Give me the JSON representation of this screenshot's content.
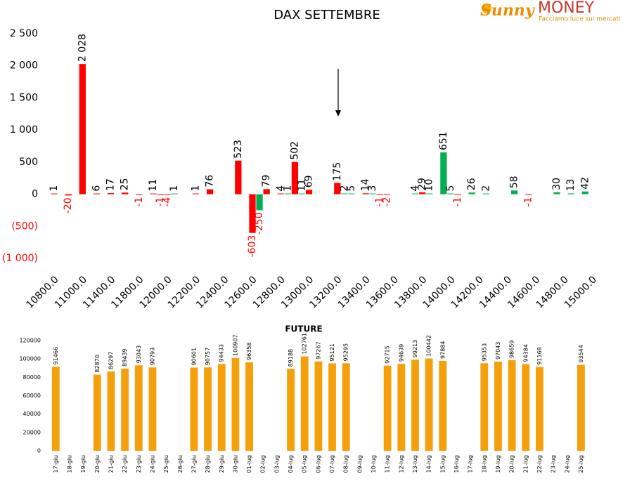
{
  "logo": {
    "brand": "Sunny",
    "name": "MONEY",
    "tagline": "Facciamo luce sui mercati"
  },
  "chart_data": [
    {
      "type": "bar",
      "title": "DAX SETTEMBRE",
      "categories": [
        "10800.0",
        null,
        null,
        null,
        "11000.0",
        null,
        null,
        null,
        "11400.0",
        null,
        null,
        null,
        "11800.0",
        null,
        null,
        null,
        "12000.0",
        null,
        null,
        null,
        "12200.0",
        null,
        null,
        null,
        "12400.0",
        null,
        null,
        null,
        "12600.0",
        null,
        null,
        null,
        "12800.0",
        null,
        null,
        null,
        "13000.0",
        null,
        null,
        null,
        "13200.0",
        null,
        null,
        null,
        "13400.0",
        null,
        null,
        null,
        "13600.0",
        null,
        null,
        null,
        "13800.0",
        null,
        null,
        null,
        "14000.0",
        null,
        null,
        null,
        "14200.0",
        null,
        null,
        null,
        "14400.0",
        null,
        null,
        null,
        "14600.0",
        null,
        null,
        null,
        "14800.0",
        null,
        null,
        null,
        "15000.0"
      ],
      "values": [
        1,
        null,
        -20,
        null,
        2028,
        null,
        6,
        null,
        17,
        null,
        25,
        null,
        -1,
        null,
        11,
        -1,
        -4,
        1,
        null,
        null,
        1,
        null,
        76,
        null,
        null,
        null,
        523,
        null,
        -603,
        -250,
        79,
        null,
        4,
        1,
        502,
        11,
        69,
        null,
        null,
        null,
        175,
        2,
        5,
        null,
        14,
        3,
        -1,
        -2,
        null,
        null,
        null,
        4,
        29,
        10,
        null,
        651,
        5,
        -1,
        null,
        26,
        null,
        2,
        null,
        null,
        null,
        58,
        null,
        -1,
        null,
        null,
        null,
        30,
        null,
        13,
        null,
        42,
        null
      ],
      "value_labels": [
        "1",
        null,
        "-20",
        null,
        "2 028",
        null,
        "6",
        null,
        "17",
        null,
        "25",
        null,
        "-1",
        null,
        "11",
        "-1",
        "-4",
        "1",
        null,
        null,
        "1",
        null,
        "76",
        null,
        null,
        null,
        "523",
        null,
        "-603",
        "-250",
        "79",
        null,
        "4",
        "1",
        "502",
        "11",
        "69",
        null,
        null,
        null,
        "175",
        "2",
        "5",
        null,
        "14",
        "3",
        "-1",
        "-2",
        null,
        null,
        null,
        "4",
        "29",
        "10",
        null,
        "651",
        "5",
        "-1",
        null,
        "26",
        null,
        "2",
        null,
        null,
        null,
        "58",
        null,
        "-1",
        null,
        null,
        null,
        "30",
        null,
        "13",
        null,
        "42",
        null
      ],
      "colors": [
        "#ff0000",
        null,
        "#ff0000",
        null,
        "#ff0000",
        null,
        "#ff0000",
        null,
        "#ff0000",
        null,
        "#ff0000",
        null,
        "#ff0000",
        null,
        "#ff0000",
        "#ff0000",
        "#ff0000",
        "#00b050",
        null,
        null,
        "#ff0000",
        null,
        "#ff0000",
        null,
        null,
        null,
        "#ff0000",
        null,
        "#ff0000",
        "#00b050",
        "#ff0000",
        null,
        "#ff0000",
        "#00b050",
        "#ff0000",
        "#00b050",
        "#ff0000",
        null,
        null,
        null,
        "#ff0000",
        "#00b050",
        "#00b050",
        null,
        "#ff0000",
        "#00b050",
        "#ff0000",
        "#ff0000",
        null,
        null,
        null,
        "#00b050",
        "#ff0000",
        "#00b050",
        null,
        "#00b050",
        "#00b050",
        "#ff0000",
        null,
        "#00b050",
        null,
        "#00b050",
        null,
        null,
        null,
        "#00b050",
        null,
        "#ff0000",
        null,
        null,
        null,
        "#00b050",
        null,
        "#00b050",
        null,
        "#00b050",
        null
      ],
      "negative_color": "#ff0000",
      "ylim": [
        -1000,
        2500
      ],
      "yticks": [
        {
          "value": -1000,
          "label": "(1 000)"
        },
        {
          "value": -500,
          "label": "(500)"
        },
        0,
        500,
        {
          "value": 1000,
          "label": "1 000"
        },
        {
          "value": 1500,
          "label": "1 500"
        },
        {
          "value": 2000,
          "label": "2 000"
        },
        {
          "value": 2500,
          "label": "2 500"
        }
      ],
      "grid": false
    },
    {
      "type": "bar",
      "title": "FUTURE",
      "categories": [
        "17-giu",
        "18-giu",
        "19-giu",
        "20-giu",
        "21-giu",
        "22-giu",
        "23-giu",
        "24-giu",
        "25-giu",
        "26-giu",
        "27-giu",
        "28-giu",
        "29-giu",
        "30-giu",
        "01-lug",
        "02-lug",
        "03-lug",
        "04-lug",
        "05-lug",
        "06-lug",
        "07-lug",
        "08-lug",
        "09-lug",
        "10-lug",
        "11-lug",
        "12-lug",
        "13-lug",
        "14-lug",
        "15-lug",
        "16-lug",
        "17-lug",
        "18-lug",
        "19-lug",
        "20-lug",
        "21-lug",
        "22-lug",
        "23-lug",
        "24-lug",
        "25-lug"
      ],
      "values": [
        91466,
        null,
        null,
        82870,
        86297,
        89439,
        93043,
        90793,
        null,
        null,
        90601,
        90757,
        94433,
        100907,
        96358,
        null,
        null,
        89188,
        102761,
        97267,
        95121,
        95295,
        null,
        null,
        92715,
        94639,
        99213,
        100442,
        97884,
        null,
        null,
        95353,
        97043,
        98659,
        94384,
        91168,
        null,
        null,
        93544
      ],
      "color": "#f5a00a",
      "ylim": [
        0,
        120000
      ],
      "yticks": [
        0,
        20000,
        40000,
        60000,
        80000,
        100000,
        120000
      ],
      "grid": false
    }
  ]
}
